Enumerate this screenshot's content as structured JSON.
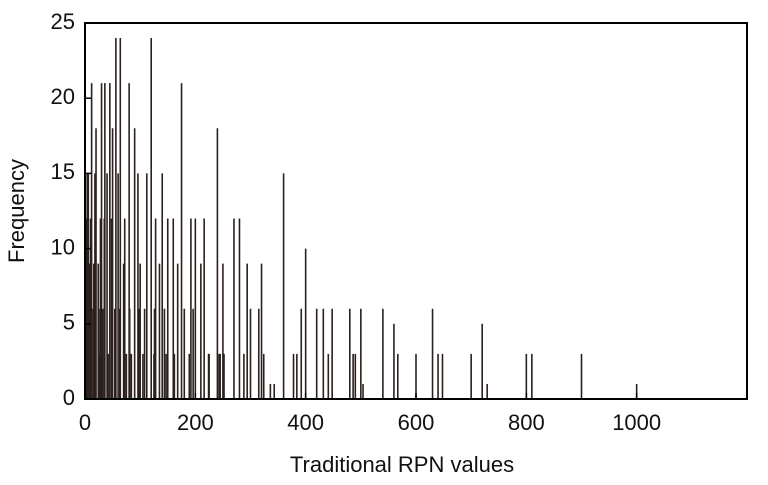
{
  "chart_data": {
    "type": "spike",
    "x_label": "Traditional RPN values",
    "y_label": "Frequency",
    "x": [
      1,
      2,
      3,
      4,
      5,
      6,
      8,
      9,
      10,
      12,
      15,
      16,
      18,
      20,
      24,
      25,
      27,
      28,
      30,
      32,
      35,
      36,
      40,
      42,
      45,
      48,
      50,
      54,
      56,
      60,
      63,
      64,
      70,
      72,
      75,
      80,
      81,
      84,
      90,
      96,
      98,
      100,
      105,
      108,
      112,
      120,
      125,
      126,
      128,
      135,
      140,
      144,
      147,
      150,
      160,
      162,
      168,
      175,
      180,
      189,
      192,
      196,
      200,
      210,
      216,
      224,
      225,
      240,
      243,
      245,
      250,
      252,
      270,
      280,
      288,
      294,
      300,
      315,
      320,
      324,
      336,
      343,
      360,
      378,
      384,
      392,
      400,
      420,
      432,
      441,
      448,
      480,
      486,
      490,
      500,
      504,
      540,
      560,
      567,
      600,
      630,
      640,
      648,
      700,
      720,
      729,
      800,
      810,
      900,
      1000
    ],
    "values": [
      9,
      6,
      12,
      15,
      6,
      15,
      9,
      3,
      12,
      21,
      6,
      9,
      15,
      18,
      9,
      3,
      6,
      12,
      21,
      6,
      12,
      21,
      15,
      3,
      21,
      12,
      18,
      6,
      24,
      15,
      6,
      24,
      9,
      12,
      3,
      21,
      6,
      3,
      18,
      15,
      6,
      9,
      3,
      6,
      15,
      24,
      3,
      6,
      12,
      9,
      15,
      6,
      3,
      12,
      12,
      3,
      9,
      21,
      6,
      3,
      12,
      6,
      12,
      9,
      12,
      3,
      3,
      18,
      3,
      3,
      9,
      3,
      12,
      12,
      3,
      9,
      6,
      6,
      9,
      3,
      1,
      1,
      15,
      3,
      3,
      6,
      10,
      6,
      6,
      3,
      6,
      6,
      3,
      3,
      6,
      1,
      6,
      5,
      3,
      3,
      6,
      3,
      3,
      3,
      5,
      1,
      3,
      3,
      3,
      1
    ],
    "color": "#2b211e",
    "xlim": [
      0,
      1200
    ],
    "xticks": [
      0,
      200,
      400,
      600,
      800,
      1000
    ],
    "ylim": [
      0,
      25
    ],
    "yticks": [
      0,
      5,
      10,
      15,
      20,
      25
    ]
  }
}
